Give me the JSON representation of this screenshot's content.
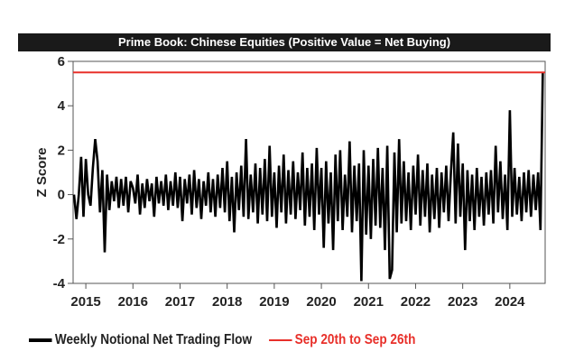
{
  "chart_data": {
    "type": "line",
    "title": "Prime Book: Chinese Equities (Positive Value = Net Buying)",
    "xlabel": "",
    "ylabel": "Z Score",
    "xlim": [
      2014.73,
      2024.75
    ],
    "ylim": [
      -4,
      6
    ],
    "xticks": [
      "2015",
      "2016",
      "2017",
      "2018",
      "2019",
      "2020",
      "2021",
      "2022",
      "2023",
      "2024"
    ],
    "yticks": [
      "6",
      "4",
      "2",
      "0",
      "-2",
      "-4"
    ],
    "grid": false,
    "legend_position": "bottom",
    "series": [
      {
        "name": "Weekly Notional Net Trading Flow",
        "color": "#000000",
        "x_start": 2014.75,
        "x_step": 0.05,
        "values": [
          0,
          -1.1,
          0,
          1.7,
          -1.0,
          1.6,
          0,
          -0.5,
          1.2,
          2.5,
          1.5,
          -0.8,
          1.1,
          -2.6,
          0.9,
          -0.7,
          0.6,
          -0.3,
          0.8,
          -0.6,
          0.7,
          -0.5,
          0.8,
          -0.8,
          0.6,
          0.3,
          -0.4,
          0.9,
          -0.9,
          0.5,
          -0.6,
          0.7,
          -0.3,
          0.5,
          -1.0,
          0.8,
          -0.4,
          0.6,
          -0.5,
          0.9,
          -0.7,
          0.6,
          -0.5,
          1.0,
          -0.6,
          0.8,
          -1.2,
          0.7,
          -0.4,
          0.9,
          -0.9,
          1.1,
          -0.6,
          0.7,
          -1.1,
          0.6,
          -0.5,
          1.0,
          -0.8,
          0.7,
          -1.0,
          0.9,
          -0.6,
          1.2,
          -0.8,
          1.5,
          -1.2,
          0.8,
          -1.7,
          1.0,
          -0.7,
          1.3,
          -1.0,
          2.5,
          -1.1,
          0.9,
          -0.8,
          1.4,
          -1.3,
          1.2,
          -0.9,
          1.6,
          -1.2,
          2.2,
          -1.0,
          1.0,
          -1.5,
          1.3,
          -0.8,
          1.8,
          -1.3,
          1.1,
          -0.9,
          1.5,
          -1.1,
          1.0,
          -0.7,
          1.9,
          -1.4,
          1.2,
          -1.0,
          1.4,
          -1.6,
          2.1,
          -0.9,
          1.2,
          -2.4,
          1.5,
          -1.3,
          1.0,
          -2.5,
          1.8,
          -1.2,
          2.0,
          -1.6,
          0.9,
          -1.0,
          2.4,
          -1.7,
          1.3,
          -1.2,
          1.4,
          -3.9,
          2.0,
          -1.8,
          1.3,
          -2.0,
          1.6,
          -1.4,
          2.1,
          -1.5,
          1.2,
          -2.5,
          2.2,
          -3.8,
          -3.4,
          1.9,
          -1.7,
          2.5,
          -1.3,
          1.5,
          -1.2,
          1.0,
          -1.6,
          1.3,
          -0.9,
          1.8,
          -1.4,
          1.1,
          -1.0,
          1.4,
          -1.7,
          0.9,
          -1.1,
          1.2,
          -1.5,
          1.0,
          -0.8,
          1.3,
          -1.2,
          1.0,
          2.8,
          -1.3,
          2.3,
          -1.0,
          1.4,
          -2.5,
          1.1,
          -1.2,
          0.9,
          -1.6,
          1.2,
          -1.0,
          0.8,
          -1.4,
          1.0,
          -0.9,
          1.1,
          -1.3,
          2.2,
          -0.8,
          1.5,
          -1.1,
          0.9,
          -1.6,
          3.8,
          -1.0,
          1.2,
          -0.9,
          0.8,
          -1.2,
          1.0,
          -0.8,
          1.1,
          -1.0,
          0.9,
          -0.7,
          1.0,
          -1.6,
          5.5
        ]
      },
      {
        "name": "Sep 20th to Sep 26th",
        "color": "#e8302a",
        "type": "hline",
        "value": 5.5
      }
    ]
  }
}
